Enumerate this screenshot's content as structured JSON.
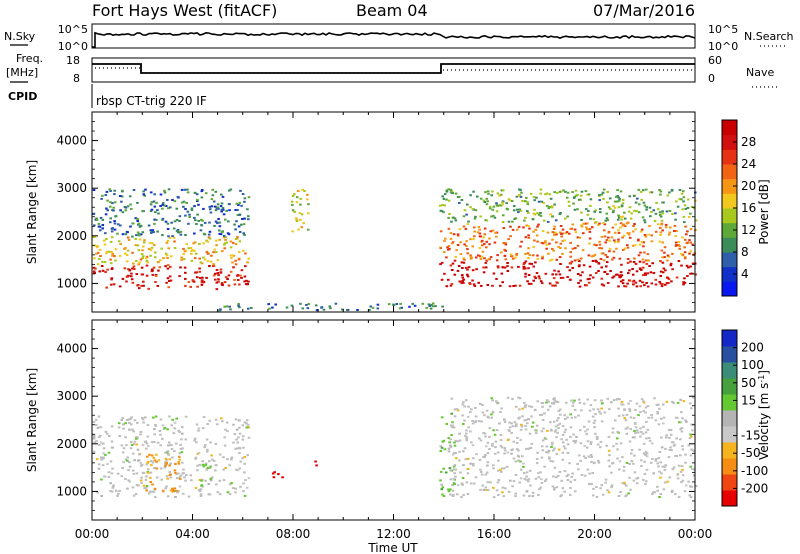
{
  "header": {
    "title": "Fort Hays West (fitACF)",
    "beam": "Beam 04",
    "date": "07/Mar/2016"
  },
  "noise_panel": {
    "left_label": "N.Sky",
    "left_ticks": [
      "10^5",
      "10^0"
    ],
    "right_label": "N.Search",
    "right_ticks": [
      "10^5",
      "10^0"
    ]
  },
  "freq_panel": {
    "left_label_line1": "Freq.",
    "left_label_line2": "[MHz]",
    "left_ticks": [
      "18",
      "8"
    ],
    "right_label": "Nave",
    "right_ticks": [
      "60",
      "0"
    ]
  },
  "cpid": {
    "label": "CPID",
    "program": "rbsp CT-trig 220 IF"
  },
  "colors": {
    "power": [
      "#0a18f0",
      "#1030c8",
      "#2e5fa8",
      "#3c8c5a",
      "#5ea83a",
      "#a8c81e",
      "#f0c81e",
      "#f59614",
      "#f06414",
      "#e63214",
      "#d21010",
      "#c80000"
    ],
    "velocity": [
      "#e60000",
      "#f04614",
      "#f58c14",
      "#f5b41e",
      "#c8c8c8",
      "#b4b4b4",
      "#64c832",
      "#46a03c",
      "#3c8c78",
      "#2850a0",
      "#1428c8"
    ],
    "velocity_gs": "#bebebe"
  },
  "chart_data": [
    {
      "type": "heatmap",
      "title": "",
      "xlabel": "",
      "ylabel": "Slant Range [km]",
      "xlim": [
        0,
        24
      ],
      "ylim": [
        400,
        4600
      ],
      "x_ticks": [
        "00:00",
        "04:00",
        "08:00",
        "12:00",
        "16:00",
        "20:00",
        "00:00"
      ],
      "y_ticks": [
        1000,
        2000,
        3000,
        4000
      ],
      "colorbar": {
        "label": "Power [dB]",
        "range": [
          0,
          32
        ],
        "ticks": [
          4,
          8,
          12,
          16,
          20,
          24,
          28
        ]
      },
      "regions": [
        {
          "t": [
            0.0,
            6.2
          ],
          "range_km": [
            900,
            1400
          ],
          "power_db": 28
        },
        {
          "t": [
            0.0,
            6.2
          ],
          "range_km": [
            1400,
            2000
          ],
          "power_db": 18
        },
        {
          "t": [
            0.0,
            6.2
          ],
          "range_km": [
            2000,
            3000
          ],
          "power_db": 8
        },
        {
          "t": [
            7.9,
            8.6
          ],
          "range_km": [
            2100,
            3000
          ],
          "power_db": 16
        },
        {
          "t": [
            13.8,
            24.0
          ],
          "range_km": [
            950,
            1500
          ],
          "power_db": 30
        },
        {
          "t": [
            13.8,
            24.0
          ],
          "range_km": [
            1500,
            2300
          ],
          "power_db": 22
        },
        {
          "t": [
            13.8,
            24.0
          ],
          "range_km": [
            2300,
            3000
          ],
          "power_db": 12
        },
        {
          "t": [
            5.0,
            14.0
          ],
          "range_km": [
            450,
            600
          ],
          "power_db": 8
        }
      ]
    },
    {
      "type": "heatmap",
      "title": "",
      "xlabel": "Time UT",
      "ylabel": "Slant Range [km]",
      "xlim": [
        0,
        24
      ],
      "ylim": [
        400,
        4600
      ],
      "x_ticks": [
        "00:00",
        "04:00",
        "08:00",
        "12:00",
        "16:00",
        "20:00",
        "00:00"
      ],
      "y_ticks": [
        1000,
        2000,
        3000,
        4000
      ],
      "colorbar": {
        "label_main": "Velocity [m s",
        "label_exp": "-1",
        "label_end": "]",
        "range": [
          -250,
          250
        ],
        "ticks": [
          -200,
          -100,
          -50,
          -15,
          15,
          50,
          100,
          200
        ]
      },
      "regions": [
        {
          "t": [
            0.0,
            6.2
          ],
          "range_km": [
            900,
            2600
          ],
          "velocity": 0,
          "ground_scatter": true
        },
        {
          "t": [
            2.0,
            3.5
          ],
          "range_km": [
            1000,
            1800
          ],
          "velocity": -60
        },
        {
          "t": [
            4.3,
            4.8
          ],
          "range_km": [
            1100,
            1700
          ],
          "velocity": 30
        },
        {
          "t": [
            7.1,
            7.6
          ],
          "range_km": [
            1300,
            1600
          ],
          "velocity": -220
        },
        {
          "t": [
            8.8,
            9.2
          ],
          "range_km": [
            1550,
            1700
          ],
          "velocity": -220
        },
        {
          "t": [
            13.8,
            14.4
          ],
          "range_km": [
            900,
            2700
          ],
          "velocity": 30
        },
        {
          "t": [
            14.2,
            24.0
          ],
          "range_km": [
            900,
            3000
          ],
          "velocity": 0,
          "ground_scatter": true
        }
      ]
    }
  ]
}
